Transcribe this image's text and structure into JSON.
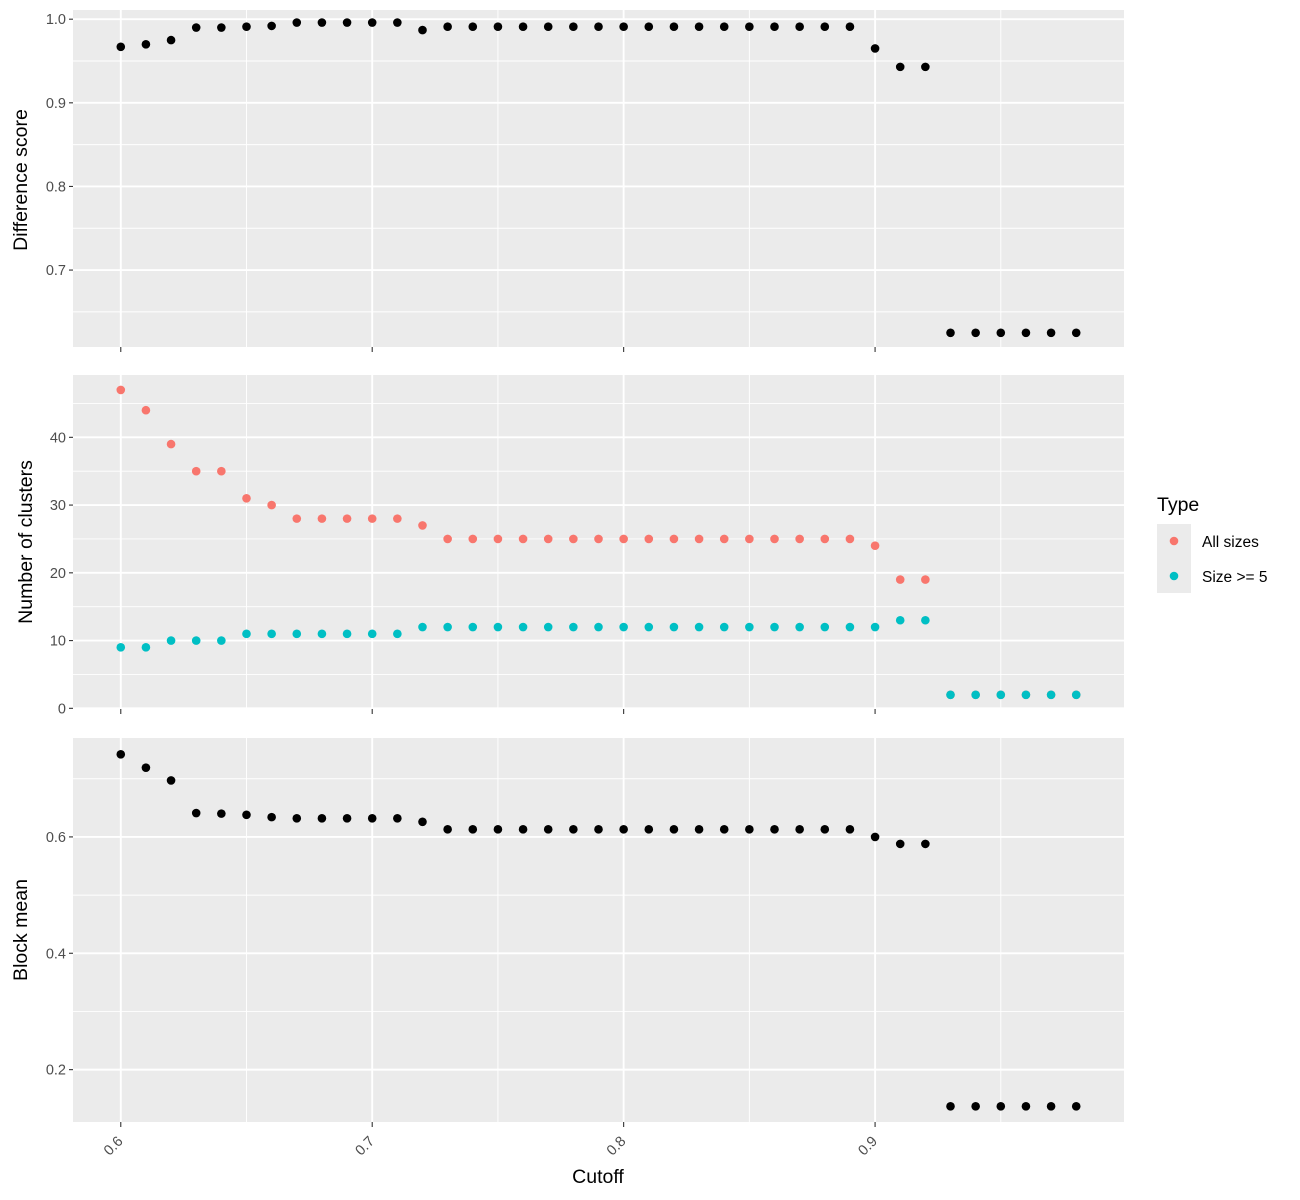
{
  "chart_data": [
    {
      "type": "scatter",
      "xlabel": "",
      "ylabel": "Difference score",
      "xlim": [
        0.581,
        0.999
      ],
      "ylim": [
        0.608,
        1.011
      ],
      "x_ticks": [
        0.6,
        0.7,
        0.8,
        0.9
      ],
      "x_tick_labels": [
        "",
        "",
        "",
        ""
      ],
      "y_ticks": [
        0.7,
        0.8,
        0.9,
        1.0
      ],
      "y_tick_labels": [
        "0.7",
        "0.8",
        "0.9",
        "1.0"
      ],
      "grid": true,
      "series": [
        {
          "color": "#000000",
          "x": [
            0.6,
            0.61,
            0.62,
            0.63,
            0.64,
            0.65,
            0.66,
            0.67,
            0.68,
            0.69,
            0.7,
            0.71,
            0.72,
            0.73,
            0.74,
            0.75,
            0.76,
            0.77,
            0.78,
            0.79,
            0.8,
            0.81,
            0.82,
            0.83,
            0.84,
            0.85,
            0.86,
            0.87,
            0.88,
            0.89,
            0.9,
            0.91,
            0.92,
            0.93,
            0.94,
            0.95,
            0.96,
            0.97,
            0.98
          ],
          "y": [
            0.967,
            0.97,
            0.975,
            0.99,
            0.99,
            0.991,
            0.992,
            0.996,
            0.996,
            0.996,
            0.996,
            0.996,
            0.987,
            0.991,
            0.991,
            0.991,
            0.991,
            0.991,
            0.991,
            0.991,
            0.991,
            0.991,
            0.991,
            0.991,
            0.991,
            0.991,
            0.991,
            0.991,
            0.991,
            0.991,
            0.965,
            0.943,
            0.943,
            0.625,
            0.625,
            0.625,
            0.625,
            0.625,
            0.625
          ]
        }
      ]
    },
    {
      "type": "scatter",
      "xlabel": "",
      "ylabel": "Number of clusters",
      "xlim": [
        0.581,
        0.999
      ],
      "ylim": [
        -0.1,
        49.2
      ],
      "x_ticks": [
        0.6,
        0.7,
        0.8,
        0.9
      ],
      "x_tick_labels": [
        "",
        "",
        "",
        ""
      ],
      "y_ticks": [
        0,
        10,
        20,
        30,
        40
      ],
      "y_tick_labels": [
        "0",
        "10",
        "20",
        "30",
        "40"
      ],
      "grid": true,
      "legend": {
        "title": "Type",
        "placement": "right",
        "entries": [
          "All sizes",
          "Size >= 5"
        ]
      },
      "series": [
        {
          "name": "All sizes",
          "color": "#f8766d",
          "x": [
            0.6,
            0.61,
            0.62,
            0.63,
            0.64,
            0.65,
            0.66,
            0.67,
            0.68,
            0.69,
            0.7,
            0.71,
            0.72,
            0.73,
            0.74,
            0.75,
            0.76,
            0.77,
            0.78,
            0.79,
            0.8,
            0.81,
            0.82,
            0.83,
            0.84,
            0.85,
            0.86,
            0.87,
            0.88,
            0.89,
            0.9,
            0.91,
            0.92,
            0.93,
            0.94,
            0.95,
            0.96,
            0.97,
            0.98
          ],
          "y": [
            47,
            44,
            39,
            35,
            35,
            31,
            30,
            28,
            28,
            28,
            28,
            28,
            27,
            25,
            25,
            25,
            25,
            25,
            25,
            25,
            25,
            25,
            25,
            25,
            25,
            25,
            25,
            25,
            25,
            25,
            24,
            19,
            19,
            2,
            2,
            2,
            2,
            2,
            2
          ]
        },
        {
          "name": "Size >= 5",
          "color": "#00bfc4",
          "x": [
            0.6,
            0.61,
            0.62,
            0.63,
            0.64,
            0.65,
            0.66,
            0.67,
            0.68,
            0.69,
            0.7,
            0.71,
            0.72,
            0.73,
            0.74,
            0.75,
            0.76,
            0.77,
            0.78,
            0.79,
            0.8,
            0.81,
            0.82,
            0.83,
            0.84,
            0.85,
            0.86,
            0.87,
            0.88,
            0.89,
            0.9,
            0.91,
            0.92,
            0.93,
            0.94,
            0.95,
            0.96,
            0.97,
            0.98
          ],
          "y": [
            9,
            9,
            10,
            10,
            10,
            11,
            11,
            11,
            11,
            11,
            11,
            11,
            12,
            12,
            12,
            12,
            12,
            12,
            12,
            12,
            12,
            12,
            12,
            12,
            12,
            12,
            12,
            12,
            12,
            12,
            12,
            13,
            13,
            2,
            2,
            2,
            2,
            2,
            2
          ]
        }
      ]
    },
    {
      "type": "scatter",
      "xlabel": "Cutoff",
      "ylabel": "Block mean",
      "xlim": [
        0.581,
        0.999
      ],
      "ylim": [
        0.11,
        0.77
      ],
      "x_ticks": [
        0.6,
        0.7,
        0.8,
        0.9
      ],
      "x_tick_labels": [
        "0.6",
        "0.7",
        "0.8",
        "0.9"
      ],
      "y_ticks": [
        0.2,
        0.4,
        0.6
      ],
      "y_tick_labels": [
        "0.2",
        "0.4",
        "0.6"
      ],
      "grid": true,
      "series": [
        {
          "color": "#000000",
          "x": [
            0.6,
            0.61,
            0.62,
            0.63,
            0.64,
            0.65,
            0.66,
            0.67,
            0.68,
            0.69,
            0.7,
            0.71,
            0.72,
            0.73,
            0.74,
            0.75,
            0.76,
            0.77,
            0.78,
            0.79,
            0.8,
            0.81,
            0.82,
            0.83,
            0.84,
            0.85,
            0.86,
            0.87,
            0.88,
            0.89,
            0.9,
            0.91,
            0.92,
            0.93,
            0.94,
            0.95,
            0.96,
            0.97,
            0.98
          ],
          "y": [
            0.742,
            0.719,
            0.697,
            0.641,
            0.64,
            0.638,
            0.634,
            0.632,
            0.632,
            0.632,
            0.632,
            0.632,
            0.626,
            0.613,
            0.613,
            0.613,
            0.613,
            0.613,
            0.613,
            0.613,
            0.613,
            0.613,
            0.613,
            0.613,
            0.613,
            0.613,
            0.613,
            0.613,
            0.613,
            0.613,
            0.6,
            0.588,
            0.588,
            0.137,
            0.137,
            0.137,
            0.137,
            0.137,
            0.137
          ]
        }
      ]
    }
  ]
}
